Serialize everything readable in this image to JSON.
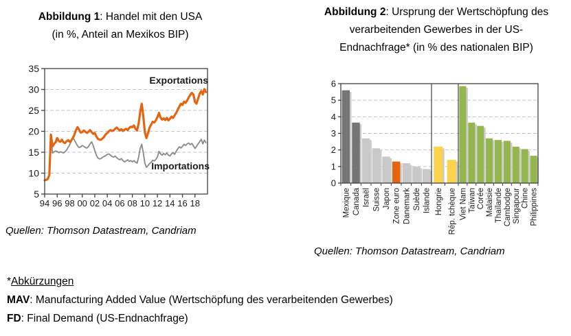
{
  "figure1": {
    "title_bold": "Abbildung 1",
    "title_rest": ": Handel mit den USA",
    "subtitle": "(in %, Anteil an Mexikos BIP)",
    "source": "Quellen: Thomson Datastream, Candriam"
  },
  "figure2": {
    "title_bold": "Abbildung 2",
    "title_rest": ": Ursprung der Wertschöpfung des",
    "title_line2": "verarbeitenden Gewerbes in der US-",
    "title_line3": "Endnachfrage* (in % des nationalen BIP)",
    "source": "Quellen: Thomson Datastream, Candriam"
  },
  "footnote": {
    "asterisk": "*",
    "heading": "Abkürzungen",
    "mav_bold": "MAV",
    "mav_rest": ": Manufacturing Added Value (Wertschöpfung des verarbeitenden Gewerbes)",
    "fd_bold": "FD",
    "fd_rest": ": Final Demand (US-Endnachfrage)"
  },
  "chart_data": [
    {
      "type": "line",
      "title": "Handel mit den USA (in %, Anteil an Mexikos BIP)",
      "xlabel": "",
      "ylabel": "",
      "x_start": 1994,
      "x_step": 0.25,
      "xlim": [
        1994,
        2020
      ],
      "ylim": [
        5,
        35
      ],
      "yticks": [
        5,
        10,
        15,
        20,
        25,
        30,
        35
      ],
      "xtick_years": [
        1994,
        1996,
        1998,
        2000,
        2002,
        2004,
        2006,
        2008,
        2010,
        2012,
        2014,
        2016,
        2018
      ],
      "xtick_labels": [
        "94",
        "96",
        "98",
        "00",
        "02",
        "04",
        "06",
        "08",
        "10",
        "12",
        "14",
        "16",
        "18"
      ],
      "grid": "horizontal-dashed",
      "legend_position": "inline-labels",
      "axis_color": "#3f3f3f",
      "grid_color": "#c2c2c2",
      "series": [
        {
          "name": "Importations",
          "color": "#8c8c8c",
          "stroke_width": 1.9,
          "values": [
            8.3,
            8.5,
            8.8,
            9.7,
            19.0,
            14.8,
            15.1,
            15.3,
            15.2,
            14.9,
            15.1,
            15.0,
            14.8,
            15.1,
            15.5,
            16.2,
            16.8,
            17.6,
            18.6,
            17.9,
            17.2,
            16.5,
            16.1,
            16.3,
            16.6,
            16.4,
            16.1,
            16.0,
            16.4,
            17.0,
            17.5,
            16.6,
            15.4,
            14.3,
            13.6,
            13.4,
            13.5,
            13.8,
            14.0,
            14.2,
            14.5,
            14.6,
            14.3,
            14.0,
            13.8,
            14.1,
            13.7,
            13.4,
            13.2,
            13.5,
            13.0,
            12.7,
            12.9,
            13.2,
            12.8,
            13.0,
            12.7,
            13.0,
            12.6,
            12.4,
            13.8,
            15.9,
            16.9,
            14.8,
            12.4,
            11.4,
            11.8,
            12.3,
            12.6,
            13.1,
            12.9,
            13.3,
            13.9,
            15.2,
            14.6,
            14.3,
            14.7,
            14.4,
            14.8,
            14.3,
            14.1,
            14.6,
            14.9,
            14.5,
            15.2,
            15.8,
            16.3,
            16.0,
            16.4,
            16.9,
            16.6,
            17.0,
            17.2,
            16.8,
            17.1,
            16.5,
            15.9,
            16.4,
            17.0,
            17.5,
            18.1,
            17.0,
            17.9,
            17.3
          ]
        },
        {
          "name": "Exportations",
          "color": "#e6640f",
          "stroke_width": 3.2,
          "values": [
            8.3,
            8.4,
            8.6,
            9.6,
            19.2,
            16.4,
            17.0,
            17.4,
            18.4,
            17.7,
            17.5,
            18.0,
            17.4,
            17.2,
            17.6,
            17.9,
            17.5,
            17.8,
            18.4,
            19.2,
            20.3,
            21.0,
            20.4,
            19.7,
            19.8,
            20.2,
            19.9,
            19.6,
            19.9,
            20.3,
            19.8,
            19.4,
            19.6,
            18.8,
            18.2,
            18.0,
            18.0,
            18.3,
            18.7,
            19.3,
            19.6,
            20.0,
            20.3,
            20.1,
            20.2,
            20.6,
            20.9,
            20.5,
            20.2,
            20.5,
            20.1,
            20.4,
            20.6,
            20.3,
            20.8,
            21.1,
            21.0,
            21.4,
            20.6,
            20.2,
            21.8,
            24.6,
            26.6,
            23.5,
            19.8,
            18.4,
            19.5,
            20.9,
            21.6,
            22.3,
            22.1,
            22.6,
            23.4,
            24.4,
            23.3,
            22.8,
            23.1,
            22.7,
            23.2,
            22.6,
            23.0,
            23.5,
            23.2,
            23.8,
            24.4,
            25.2,
            25.9,
            26.6,
            26.3,
            27.1,
            26.8,
            27.4,
            28.1,
            28.7,
            29.2,
            28.8,
            27.0,
            26.6,
            27.8,
            29.0,
            29.6,
            28.8,
            30.1,
            29.4
          ]
        }
      ]
    },
    {
      "type": "bar",
      "title": "Ursprung der Wertschöpfung des verarbeitenden Gewerbes in der US-Endnachfrage (in % des nationalen BIP)",
      "xlabel": "",
      "ylabel": "",
      "ylim": [
        0,
        6
      ],
      "yticks": [
        0,
        1,
        2,
        3,
        4,
        5,
        6
      ],
      "grid": "horizontal-dashed",
      "axis_color": "#3f3f3f",
      "grid_color": "#c2c2c2",
      "shadow_color": "#cdcdcd",
      "groups": [
        {
          "categories": [
            "Mexique",
            "Canada",
            "Israël",
            "Suisse",
            "Japon",
            "Zone euro",
            "Danemark",
            "Suède",
            "Islande"
          ],
          "values": [
            5.6,
            3.65,
            2.7,
            2.1,
            1.6,
            1.3,
            1.2,
            1.0,
            0.85
          ],
          "colors": [
            "#757575",
            "#757575",
            "#c8c8c8",
            "#c8c8c8",
            "#c8c8c8",
            "#e6640f",
            "#c8c8c8",
            "#c8c8c8",
            "#c8c8c8"
          ]
        },
        {
          "categories": [
            "Hongrie",
            "Rép. tchèque"
          ],
          "values": [
            2.2,
            1.4
          ],
          "colors": [
            "#fbd34d",
            "#fbd34d"
          ]
        },
        {
          "categories": [
            "Viet Nam",
            "Taïwan",
            "Corée",
            "Malaisie",
            "Thaïlande",
            "Cambodge",
            "Singapour",
            "Chine",
            "Philippines"
          ],
          "values": [
            5.85,
            3.65,
            3.45,
            2.7,
            2.6,
            2.55,
            2.2,
            2.05,
            1.65
          ],
          "colors": [
            "#94b64f",
            "#94b64f",
            "#94b64f",
            "#94b64f",
            "#94b64f",
            "#94b64f",
            "#94b64f",
            "#94b64f",
            "#94b64f"
          ]
        }
      ]
    }
  ]
}
